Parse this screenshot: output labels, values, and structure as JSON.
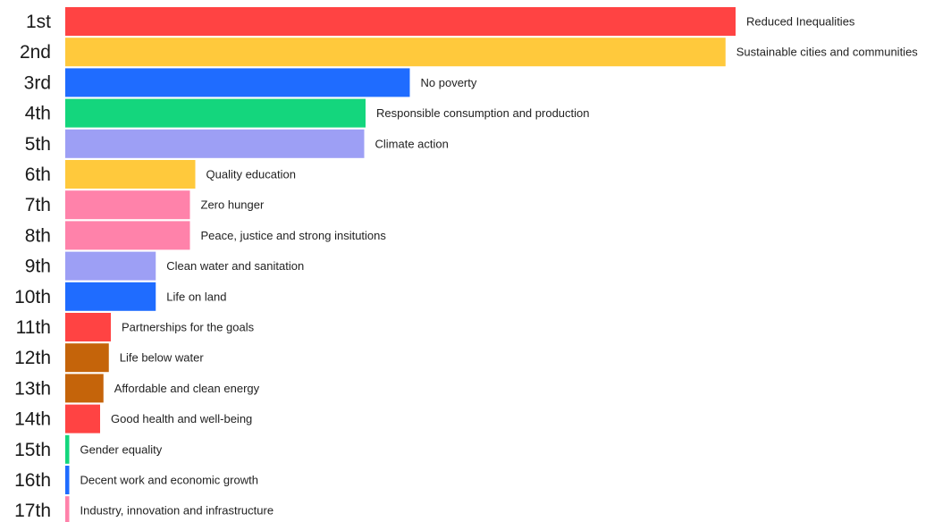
{
  "chart_data": {
    "type": "bar",
    "orientation": "horizontal",
    "title": "",
    "xlabel": "",
    "ylabel": "",
    "grid": false,
    "legend": "none",
    "axis_visible": false,
    "xlim": [
      0,
      100
    ],
    "ranks": [
      "1st",
      "2nd",
      "3rd",
      "4th",
      "5th",
      "6th",
      "7th",
      "8th",
      "9th",
      "10th",
      "11th",
      "12th",
      "13th",
      "14th",
      "15th",
      "16th",
      "17th"
    ],
    "categories": [
      "Reduced Inequalities",
      "Sustainable cities and communities",
      "No poverty",
      "Responsible consumption and production",
      "Climate action",
      "Quality education",
      "Zero hunger",
      "Peace, justice and strong insitutions",
      "Clean water and sanitation",
      "Life on land",
      "Partnerships for the goals",
      "Life below water",
      "Affordable and clean energy",
      "Good health and well-being",
      "Gender equality",
      "Decent work and economic growth",
      "Industry, innovation and infrastructure"
    ],
    "values": [
      100,
      98.5,
      51.4,
      44.8,
      44.6,
      19.4,
      18.6,
      18.6,
      13.5,
      13.5,
      6.8,
      6.5,
      5.7,
      5.2,
      0.6,
      0.6,
      0.6
    ],
    "colors": [
      "#ff4343",
      "#ffc93c",
      "#1f6cff",
      "#14d67d",
      "#9d9ff5",
      "#ffc93c",
      "#ff82aa",
      "#ff82aa",
      "#9d9ff5",
      "#1f6cff",
      "#ff4343",
      "#c5640a",
      "#c5640a",
      "#ff4343",
      "#14d67d",
      "#1f6cff",
      "#ff82aa"
    ]
  }
}
